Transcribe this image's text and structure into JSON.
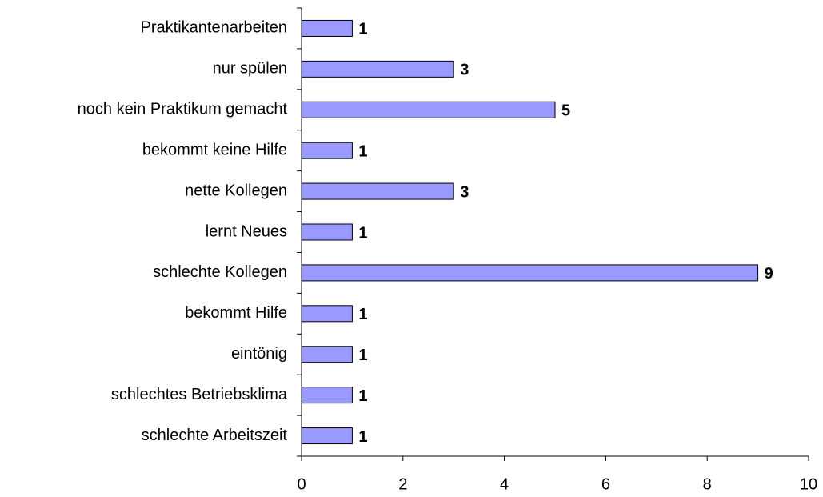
{
  "chart_data": {
    "type": "bar",
    "orientation": "horizontal",
    "categories": [
      "Praktikantenarbeiten",
      "nur spülen",
      "noch kein Praktikum gemacht",
      "bekommt keine Hilfe",
      "nette Kollegen",
      "lernt Neues",
      "schlechte Kollegen",
      "bekommt Hilfe",
      "eintönig",
      "schlechtes Betriebsklima",
      "schlechte Arbeitszeit"
    ],
    "values": [
      1,
      3,
      5,
      1,
      3,
      1,
      9,
      1,
      1,
      1,
      1
    ],
    "color": "#9999ff",
    "xlim": [
      0,
      10
    ],
    "xticks": [
      0,
      2,
      4,
      6,
      8,
      10
    ],
    "grid": false
  }
}
